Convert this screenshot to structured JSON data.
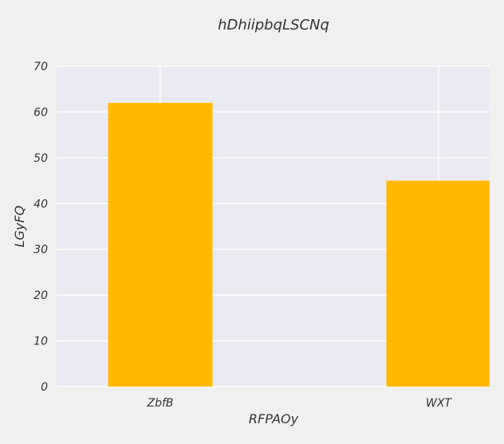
{
  "chart_data": {
    "type": "bar",
    "title": "hDhiipbqLSCNq",
    "xlabel": "RFPAOy",
    "ylabel": "LGyFQ",
    "categories": [
      "ZbfB",
      "WXT"
    ],
    "values": [
      62,
      45
    ],
    "ylim": [
      0,
      70
    ],
    "yticks": [
      "0",
      "10",
      "20",
      "30",
      "40",
      "50",
      "60",
      "70"
    ],
    "grid": true,
    "colors": {
      "bar": "#ffb900",
      "plot_background": "#eaeaf2",
      "figure_background": "#f0f0f0",
      "grid": "#ffffff"
    }
  }
}
